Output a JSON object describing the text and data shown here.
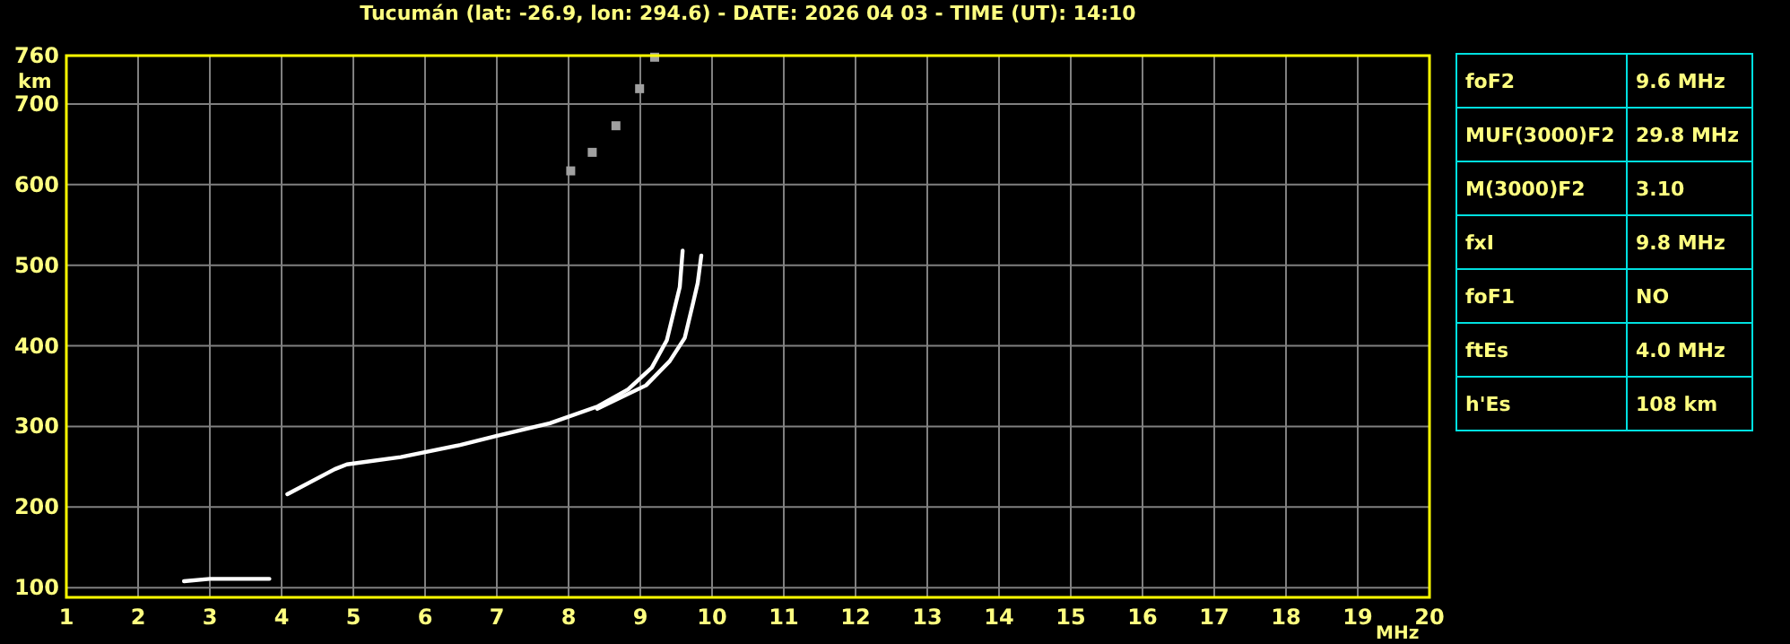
{
  "chart_data": [
    {
      "type": "line",
      "title": "Tucumán (lat: -26.9, lon: 294.6) - DATE: 2026 04 03 - TIME (UT): 14:10",
      "xlabel": "MHz",
      "ylabel": "km",
      "xlim": [
        1,
        20
      ],
      "ylim": [
        88,
        760
      ],
      "xticks": [
        1,
        2,
        3,
        4,
        5,
        6,
        7,
        8,
        9,
        10,
        11,
        12,
        13,
        14,
        15,
        16,
        17,
        18,
        19,
        20
      ],
      "yticks": [
        100,
        200,
        300,
        400,
        500,
        600,
        700,
        760
      ],
      "grid": true,
      "marker": "none",
      "line_style": "solid",
      "series": [
        {
          "color": "#ffffff",
          "x": [
            4.08,
            4.74,
            4.91,
            5.66,
            6.49,
            6.99,
            7.74,
            8.41,
            8.83,
            9.16,
            9.37,
            9.49,
            9.55,
            9.59
          ],
          "values": [
            216,
            247,
            253,
            262,
            277,
            288,
            304,
            325,
            346,
            373,
            407,
            451,
            473,
            518
          ]
        },
        {
          "color": "#ffffff",
          "x": [
            8.4,
            9.08,
            9.41,
            9.62,
            9.74,
            9.8,
            9.85
          ],
          "values": [
            322,
            351,
            381,
            410,
            455,
            478,
            512
          ]
        },
        {
          "color": "#ffffff",
          "x": [
            2.64,
            3.0,
            3.3,
            3.6,
            3.83
          ],
          "values": [
            108,
            111,
            111,
            111,
            111
          ]
        },
        {
          "type": "scatter",
          "marker": "square",
          "color": "#a0a0a0",
          "x": [
            8.03,
            8.33,
            8.66,
            8.99,
            9.2
          ],
          "values": [
            617,
            640,
            673,
            719,
            758
          ]
        }
      ]
    },
    {
      "type": "other",
      "annotations": [
        "foF2",
        "9.6 MHz",
        "MUF(3000)F2",
        "29.8 MHz",
        "M(3000)F2",
        "3.10",
        "fxI",
        "9.8 MHz",
        "foF1",
        "NO",
        "ftEs",
        "4.0 MHz",
        "h'Es",
        "108 km"
      ]
    }
  ]
}
